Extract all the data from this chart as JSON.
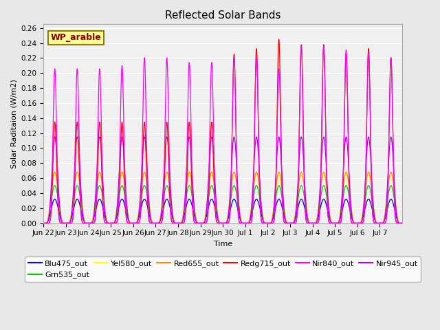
{
  "title": "Reflected Solar Bands",
  "xlabel": "Time",
  "ylabel": "Solar Raditaion (W/m2)",
  "annotation": "WP_arable",
  "annotation_bg": "#FFFF99",
  "annotation_border": "#8B8000",
  "annotation_text_color": "#8B0000",
  "ylim": [
    0,
    0.265
  ],
  "yticks": [
    0.0,
    0.02,
    0.04,
    0.06,
    0.08,
    0.1,
    0.12,
    0.14,
    0.16,
    0.18,
    0.2,
    0.22,
    0.24,
    0.26
  ],
  "background_color": "#e8e8e8",
  "plot_bg": "#f0f0f0",
  "grid_color": "#ffffff",
  "n_days": 16,
  "bands": [
    {
      "name": "Blu475_out",
      "color": "#0000ff",
      "peak_scale": 0.032
    },
    {
      "name": "Grn535_out",
      "color": "#00cc00",
      "peak_scale": 0.05
    },
    {
      "name": "Yel580_out",
      "color": "#ffff00",
      "peak_scale": 0.065
    },
    {
      "name": "Red655_out",
      "color": "#ff8800",
      "peak_scale": 0.068
    },
    {
      "name": "Redg715_out",
      "color": "#ff0000",
      "peak_scale": 0.245
    },
    {
      "name": "Nir840_out",
      "color": "#ff00ff",
      "peak_scale": 0.21
    },
    {
      "name": "Nir945_out",
      "color": "#aa00ff",
      "peak_scale": 0.115
    }
  ],
  "peak_vars_blu": [
    1.0,
    1.0,
    1.0,
    1.0,
    1.0,
    1.0,
    1.0,
    1.0,
    1.0,
    1.0,
    1.0,
    1.0,
    1.0,
    1.0,
    1.0,
    1.0
  ],
  "peak_vars_grn": [
    1.0,
    1.0,
    1.0,
    1.0,
    1.0,
    1.0,
    1.0,
    1.0,
    1.0,
    1.0,
    1.0,
    1.0,
    1.0,
    1.0,
    1.0,
    1.0
  ],
  "peak_vars_yel": [
    1.0,
    1.0,
    1.0,
    1.0,
    1.0,
    1.0,
    1.0,
    1.0,
    1.0,
    1.0,
    1.0,
    1.0,
    1.0,
    1.0,
    1.0,
    1.0
  ],
  "peak_vars_red655": [
    1.0,
    1.0,
    1.0,
    1.0,
    1.0,
    1.0,
    1.0,
    1.0,
    1.0,
    1.0,
    1.0,
    1.0,
    1.0,
    1.0,
    1.0,
    1.0
  ],
  "peak_vars_redg715": [
    0.55,
    0.55,
    0.55,
    0.55,
    0.55,
    0.55,
    0.55,
    0.55,
    0.92,
    0.95,
    1.0,
    0.97,
    0.97,
    0.92,
    0.95,
    0.9
  ],
  "peak_vars_nir840": [
    0.98,
    0.98,
    0.98,
    1.0,
    1.05,
    1.05,
    1.02,
    1.02,
    1.05,
    1.05,
    0.98,
    1.12,
    1.12,
    1.1,
    1.08,
    1.05
  ],
  "peak_vars_nir945": [
    1.0,
    1.0,
    1.0,
    1.0,
    1.0,
    1.0,
    1.0,
    1.0,
    1.0,
    1.0,
    1.0,
    1.0,
    1.0,
    1.0,
    1.0,
    1.0
  ],
  "xtick_labels": [
    "Jun 22",
    "Jun 23",
    "Jun 24",
    "Jun 25",
    "Jun 26",
    "Jun 27",
    "Jun 28",
    "Jun 29",
    "Jun 30",
    "Jul 1",
    "Jul 2",
    "Jul 3",
    "Jul 4",
    "Jul 5",
    "Jul 6",
    "Jul 7"
  ],
  "title_fontsize": 11,
  "label_fontsize": 8,
  "tick_fontsize": 7.5,
  "legend_fontsize": 8
}
